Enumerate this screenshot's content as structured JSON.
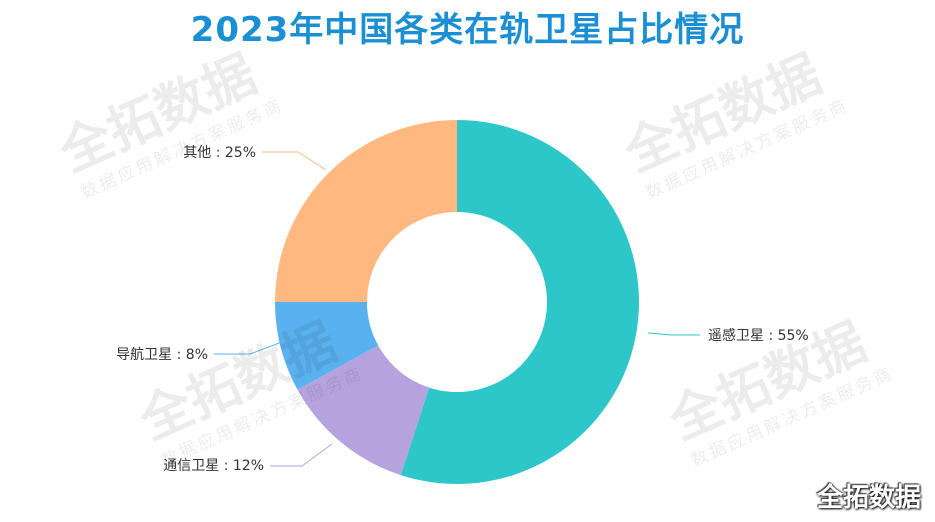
{
  "chart_data": {
    "type": "pie",
    "title": "2023年中国各类在轨卫星占比情况",
    "categories": [
      "遥感卫星",
      "通信卫星",
      "导航卫星",
      "其他"
    ],
    "values": [
      55,
      12,
      8,
      25
    ],
    "labels": [
      "遥感卫星 : 55%",
      "通信卫星 : 12%",
      "导航卫星 : 8%",
      "其他 : 25%"
    ],
    "colors": [
      "#2ec7c9",
      "#b6a2de",
      "#5ab1ef",
      "#ffb980"
    ],
    "unit": "%"
  },
  "watermark": {
    "main": "全拓数据",
    "sub": "数据应用解决方案服务商"
  },
  "brand": "全拓数据"
}
